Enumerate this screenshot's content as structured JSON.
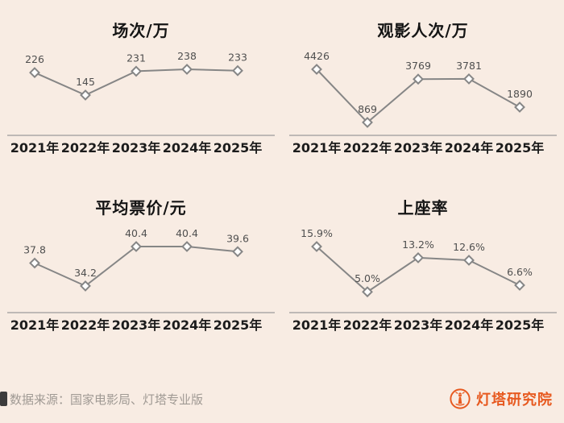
{
  "page": {
    "background": "#f8ece3"
  },
  "colors": {
    "line": "#868686",
    "axis": "#9a9a9a",
    "marker_fill": "#ffffff",
    "value_label": "#4f4f4f",
    "title": "#141414",
    "year_label": "#1c1c1c",
    "source_text": "#a09a94",
    "brand": "#e7591f"
  },
  "footer": {
    "source": "数据来源：国家电影局、灯塔专业版",
    "brand": "灯塔研究院"
  },
  "chart_data": [
    {
      "type": "line",
      "title": "场次/万",
      "categories": [
        "2021年",
        "2022年",
        "2023年",
        "2024年",
        "2025年"
      ],
      "values": [
        226,
        145,
        231,
        238,
        233
      ],
      "labels": [
        "226",
        "145",
        "231",
        "238",
        "233"
      ],
      "ylim": [
        0,
        238
      ],
      "grid": false,
      "legend": "none",
      "marker": "diamond"
    },
    {
      "type": "line",
      "title": "观影人次/万",
      "categories": [
        "2021年",
        "2022年",
        "2023年",
        "2024年",
        "2025年"
      ],
      "values": [
        4426,
        869,
        3769,
        3781,
        1890
      ],
      "labels": [
        "4426",
        "869",
        "3769",
        "3781",
        "1890"
      ],
      "ylim": [
        0,
        4426
      ],
      "grid": false,
      "legend": "none",
      "marker": "diamond"
    },
    {
      "type": "line",
      "title": "平均票价/元",
      "categories": [
        "2021年",
        "2022年",
        "2023年",
        "2024年",
        "2025年"
      ],
      "values": [
        37.8,
        34.2,
        40.4,
        40.4,
        39.6
      ],
      "labels": [
        "37.8",
        "34.2",
        "40.4",
        "40.4",
        "39.6"
      ],
      "ylim": [
        30,
        40.4
      ],
      "grid": false,
      "legend": "none",
      "marker": "diamond"
    },
    {
      "type": "line",
      "title": "上座率",
      "categories": [
        "2021年",
        "2022年",
        "2023年",
        "2024年",
        "2025年"
      ],
      "values": [
        15.9,
        5.0,
        13.2,
        12.6,
        6.6
      ],
      "labels": [
        "15.9%",
        "5.0%",
        "13.2%",
        "12.6%",
        "6.6%"
      ],
      "ylim": [
        0,
        15.9
      ],
      "grid": false,
      "legend": "none",
      "marker": "diamond"
    }
  ]
}
